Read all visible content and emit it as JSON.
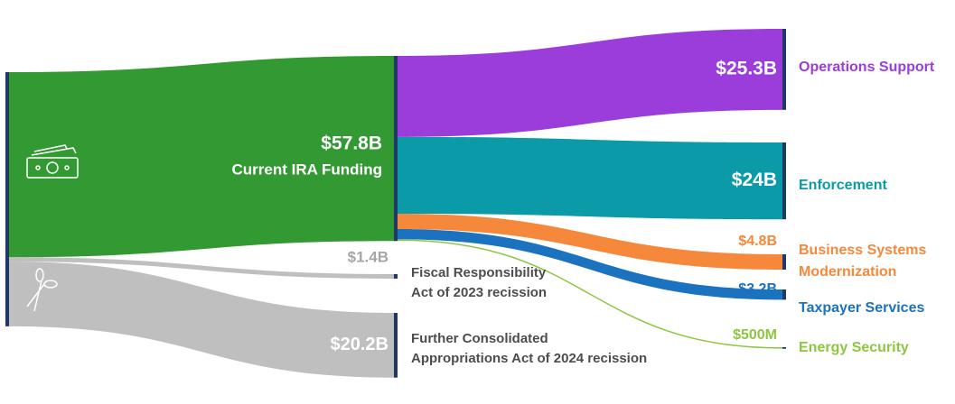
{
  "chart_data": {
    "type": "sankey",
    "source": {
      "value": 57.8,
      "value_label": "$57.8B",
      "name": "Current IRA Funding",
      "color": "#339933"
    },
    "rescissions": [
      {
        "name": [
          "Fiscal Responsibility",
          "Act of 2023 recission"
        ],
        "value": 1.4,
        "value_label": "$1.4B",
        "color": "#bfbfbf",
        "label_color": "#a6a6a6"
      },
      {
        "name": [
          "Further Consolidated",
          "Appropriations Act of 2024 recission"
        ],
        "value": 20.2,
        "value_label": "$20.2B",
        "color": "#bfbfbf",
        "label_color": "#ffffff"
      }
    ],
    "targets": [
      {
        "name": [
          "Operations Support"
        ],
        "value": 25.3,
        "value_label": "$25.3B",
        "color": "#9b3ddb",
        "label_color": "#ffffff"
      },
      {
        "name": [
          "Enforcement"
        ],
        "value": 24,
        "value_label": "$24B",
        "color": "#0b9aa8",
        "label_color": "#ffffff"
      },
      {
        "name": [
          "Business Systems",
          "Modernization"
        ],
        "value": 4.8,
        "value_label": "$4.8B",
        "color": "#f5883a",
        "label_color": "#f5883a"
      },
      {
        "name": [
          "Taxpayer Services"
        ],
        "value": 3.2,
        "value_label": "$3.2B",
        "color": "#1b72be",
        "label_color": "#1b72be"
      },
      {
        "name": [
          "Energy Security"
        ],
        "value": 0.5,
        "value_label": "$500M",
        "color": "#8dc63f",
        "label_color": "#8dc63f"
      }
    ]
  }
}
